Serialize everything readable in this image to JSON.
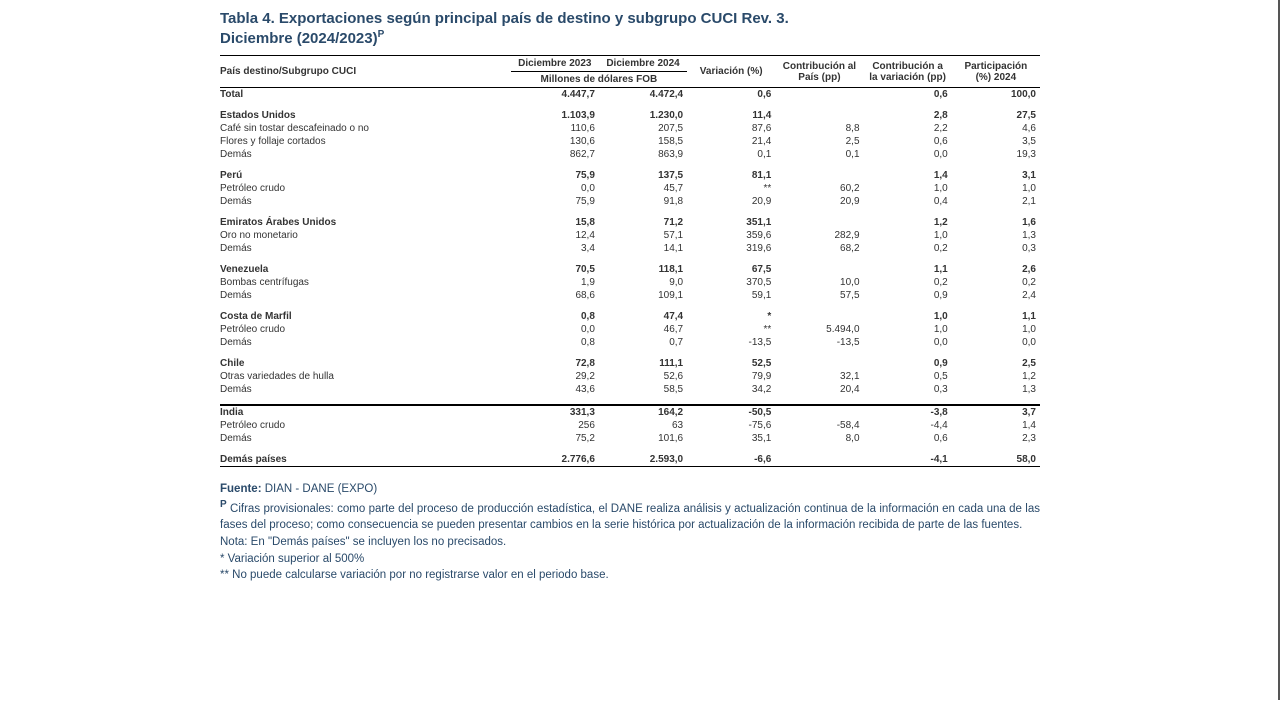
{
  "title": "Tabla 4. Exportaciones según principal país de destino y subgrupo CUCI Rev. 3.",
  "subtitle": "Diciembre (2024/2023)",
  "superscript_p": "P",
  "headers": {
    "col0": "País destino/Subgrupo CUCI",
    "col1": "Diciembre 2023",
    "col2": "Diciembre 2024",
    "col_unit": "Millones de dólares FOB",
    "col3": "Variación (%)",
    "col4": "Contribución al País (pp)",
    "col5": "Contribución a la variación (pp)",
    "col6": "Participación (%) 2024"
  },
  "total": {
    "label": "Total",
    "v": [
      "4.447,7",
      "4.472,4",
      "0,6",
      "",
      "0,6",
      "100,0"
    ]
  },
  "groups": [
    {
      "name": "Estados Unidos",
      "v": [
        "1.103,9",
        "1.230,0",
        "11,4",
        "",
        "2,8",
        "27,5"
      ],
      "rows": [
        {
          "l": "Café sin tostar descafeinado o no",
          "v": [
            "110,6",
            "207,5",
            "87,6",
            "8,8",
            "2,2",
            "4,6"
          ]
        },
        {
          "l": "Flores y follaje cortados",
          "v": [
            "130,6",
            "158,5",
            "21,4",
            "2,5",
            "0,6",
            "3,5"
          ]
        },
        {
          "l": "Demás",
          "v": [
            "862,7",
            "863,9",
            "0,1",
            "0,1",
            "0,0",
            "19,3"
          ]
        }
      ]
    },
    {
      "name": "Perú",
      "v": [
        "75,9",
        "137,5",
        "81,1",
        "",
        "1,4",
        "3,1"
      ],
      "rows": [
        {
          "l": "Petróleo crudo",
          "v": [
            "0,0",
            "45,7",
            "**",
            "60,2",
            "1,0",
            "1,0"
          ]
        },
        {
          "l": "Demás",
          "v": [
            "75,9",
            "91,8",
            "20,9",
            "20,9",
            "0,4",
            "2,1"
          ]
        }
      ]
    },
    {
      "name": "Emiratos Árabes Unidos",
      "v": [
        "15,8",
        "71,2",
        "351,1",
        "",
        "1,2",
        "1,6"
      ],
      "rows": [
        {
          "l": "Oro no monetario",
          "v": [
            "12,4",
            "57,1",
            "359,6",
            "282,9",
            "1,0",
            "1,3"
          ]
        },
        {
          "l": "Demás",
          "v": [
            "3,4",
            "14,1",
            "319,6",
            "68,2",
            "0,2",
            "0,3"
          ]
        }
      ]
    },
    {
      "name": "Venezuela",
      "v": [
        "70,5",
        "118,1",
        "67,5",
        "",
        "1,1",
        "2,6"
      ],
      "rows": [
        {
          "l": "Bombas centrífugas",
          "v": [
            "1,9",
            "9,0",
            "370,5",
            "10,0",
            "0,2",
            "0,2"
          ]
        },
        {
          "l": "Demás",
          "v": [
            "68,6",
            "109,1",
            "59,1",
            "57,5",
            "0,9",
            "2,4"
          ]
        }
      ]
    },
    {
      "name": "Costa de Marfil",
      "v": [
        "0,8",
        "47,4",
        "*",
        "",
        "1,0",
        "1,1"
      ],
      "rows": [
        {
          "l": "Petróleo crudo",
          "v": [
            "0,0",
            "46,7",
            "**",
            "5.494,0",
            "1,0",
            "1,0"
          ]
        },
        {
          "l": "Demás",
          "v": [
            "0,8",
            "0,7",
            "-13,5",
            "-13,5",
            "0,0",
            "0,0"
          ]
        }
      ]
    },
    {
      "name": "Chile",
      "v": [
        "72,8",
        "111,1",
        "52,5",
        "",
        "0,9",
        "2,5"
      ],
      "rows": [
        {
          "l": "Otras variedades de hulla",
          "v": [
            "29,2",
            "52,6",
            "79,9",
            "32,1",
            "0,5",
            "1,2"
          ]
        },
        {
          "l": "Demás",
          "v": [
            "43,6",
            "58,5",
            "34,2",
            "20,4",
            "0,3",
            "1,3"
          ]
        }
      ]
    },
    {
      "name": "India",
      "v": [
        "331,3",
        "164,2",
        "-50,5",
        "",
        "-3,8",
        "3,7"
      ],
      "thick": true,
      "rows": [
        {
          "l": "Petróleo crudo",
          "v": [
            "256",
            "63",
            "-75,6",
            "-58,4",
            "-4,4",
            "1,4"
          ]
        },
        {
          "l": "Demás",
          "v": [
            "75,2",
            "101,6",
            "35,1",
            "8,0",
            "0,6",
            "2,3"
          ]
        }
      ]
    }
  ],
  "demas_paises": {
    "label": "Demás países",
    "v": [
      "2.776,6",
      "2.593,0",
      "-6,6",
      "",
      "-4,1",
      "58,0"
    ]
  },
  "footnotes": {
    "fuente_label": "Fuente:",
    "fuente": "DIAN - DANE (EXPO)",
    "p_note": "Cifras provisionales: como parte del proceso de producción estadística, el DANE realiza análisis y actualización continua de la información en cada una de las fases del proceso; como consecuencia se pueden presentar cambios en la serie histórica por actualización de la información recibida de parte de las fuentes.",
    "nota": "Nota: En \"Demás países\" se incluyen los no precisados.",
    "star": "* Variación superior al 500%",
    "dstar": "** No puede calcularse variación por no registrarse valor en el periodo base."
  }
}
